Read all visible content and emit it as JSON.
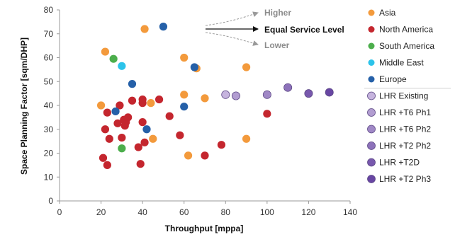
{
  "colors": {
    "asia": "#f39a3c",
    "north_america": "#c4262e",
    "south_america": "#4cae4c",
    "middle_east": "#2cc3ea",
    "europe": "#2560a8",
    "lhr_existing": "#c6b4de",
    "lhr_t6_ph1": "#b29dd1",
    "lhr_t6_ph2": "#a088c6",
    "lhr_t2_ph2": "#8d72ba",
    "lhr_t2d": "#7858ad",
    "lhr_t2_ph3": "#6846a3"
  },
  "chart_data": {
    "type": "scatter",
    "xlabel": "Throughput [mppa]",
    "ylabel": "Space Planning Factor [sqm/DHP]",
    "xlim": [
      0,
      140
    ],
    "ylim": [
      0,
      80
    ],
    "xticks": [
      0,
      20,
      40,
      60,
      80,
      100,
      120,
      140
    ],
    "yticks": [
      0,
      10,
      20,
      30,
      40,
      50,
      60,
      70,
      80
    ],
    "grid": false,
    "legend_position": "right",
    "series": [
      {
        "name": "Asia",
        "color": "#f39a3c",
        "points": [
          [
            20,
            40
          ],
          [
            22,
            62.5
          ],
          [
            41,
            72
          ],
          [
            60,
            60
          ],
          [
            66,
            55.5
          ],
          [
            90,
            56
          ],
          [
            60,
            44.5
          ],
          [
            70,
            43
          ],
          [
            44,
            41
          ],
          [
            45,
            26
          ],
          [
            62,
            19
          ],
          [
            90,
            26
          ]
        ]
      },
      {
        "name": "North America",
        "color": "#c4262e",
        "points": [
          [
            21,
            18
          ],
          [
            23,
            15
          ],
          [
            22,
            30
          ],
          [
            23,
            37
          ],
          [
            24,
            26
          ],
          [
            28,
            32.5
          ],
          [
            29,
            40
          ],
          [
            30,
            26.5
          ],
          [
            31,
            34
          ],
          [
            31.5,
            31.5
          ],
          [
            32,
            33
          ],
          [
            33,
            35
          ],
          [
            35,
            42
          ],
          [
            38,
            22.5
          ],
          [
            39,
            15.5
          ],
          [
            40,
            42.5
          ],
          [
            40,
            41
          ],
          [
            40,
            33
          ],
          [
            41,
            24.5
          ],
          [
            48,
            42.5
          ],
          [
            53,
            35.5
          ],
          [
            58,
            27.5
          ],
          [
            70,
            19
          ],
          [
            78,
            23.5
          ],
          [
            100,
            36.5
          ]
        ]
      },
      {
        "name": "South America",
        "color": "#4cae4c",
        "points": [
          [
            26,
            59.5
          ],
          [
            30,
            22
          ]
        ]
      },
      {
        "name": "Middle East",
        "color": "#2cc3ea",
        "points": [
          [
            30,
            56.5
          ]
        ]
      },
      {
        "name": "Europe",
        "color": "#2560a8",
        "points": [
          [
            50,
            73
          ],
          [
            65,
            56
          ],
          [
            35,
            49
          ],
          [
            27,
            37.5
          ],
          [
            60,
            39.5
          ],
          [
            42,
            30
          ]
        ]
      },
      {
        "name": "LHR Existing",
        "color": "#c6b4de",
        "points": [
          [
            80,
            44.5
          ]
        ]
      },
      {
        "name": "LHR +T6 Ph1",
        "color": "#b29dd1",
        "points": [
          [
            85,
            44
          ]
        ]
      },
      {
        "name": "LHR +T6 Ph2",
        "color": "#a088c6",
        "points": [
          [
            100,
            44.5
          ]
        ]
      },
      {
        "name": "LHR +T2 Ph2",
        "color": "#8d72ba",
        "points": [
          [
            110,
            47.5
          ]
        ]
      },
      {
        "name": "LHR +T2D",
        "color": "#7858ad",
        "points": [
          [
            120,
            45
          ]
        ]
      },
      {
        "name": "LHR +T2 Ph3",
        "color": "#6846a3",
        "points": [
          [
            130,
            45.5
          ]
        ]
      }
    ],
    "annotations": {
      "higher": "Higher",
      "equal": "Equal Service Level",
      "lower": "Lower"
    }
  }
}
